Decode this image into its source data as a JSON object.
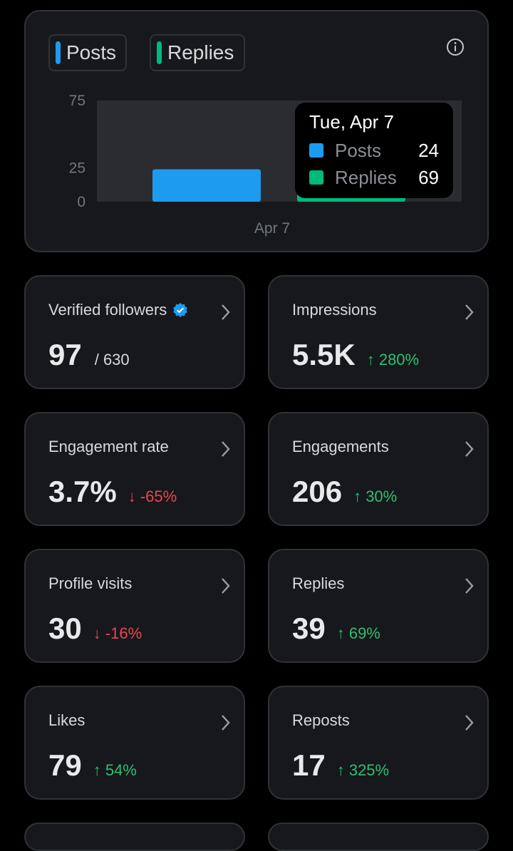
{
  "legend": {
    "posts_label": "Posts",
    "replies_label": "Replies"
  },
  "colors": {
    "posts": "#1d9bf0",
    "replies": "#00ba7c",
    "up": "#2fbf71",
    "down": "#ea4552"
  },
  "chart_data": {
    "type": "bar",
    "categories": [
      "Apr 7"
    ],
    "series": [
      {
        "name": "Posts",
        "values": [
          24
        ]
      },
      {
        "name": "Replies",
        "values": [
          69
        ]
      }
    ],
    "y_ticks": [
      "75",
      "25",
      "0"
    ],
    "ylim": [
      0,
      75
    ],
    "grid": false,
    "legend_position": "top-left"
  },
  "tooltip": {
    "title": "Tue, Apr 7",
    "posts_label": "Posts",
    "posts_value": "24",
    "replies_label": "Replies",
    "replies_value": "69"
  },
  "stats": {
    "verified_followers": {
      "label": "Verified followers",
      "value": "97",
      "sub": "/ 630"
    },
    "impressions": {
      "label": "Impressions",
      "value": "5.5K",
      "change": "↑ 280%"
    },
    "engagement_rate": {
      "label": "Engagement rate",
      "value": "3.7%",
      "change": "↓ -65%"
    },
    "engagements": {
      "label": "Engagements",
      "value": "206",
      "change": "↑ 30%"
    },
    "profile_visits": {
      "label": "Profile visits",
      "value": "30",
      "change": "↓ -16%"
    },
    "replies": {
      "label": "Replies",
      "value": "39",
      "change": "↑ 69%"
    },
    "likes": {
      "label": "Likes",
      "value": "79",
      "change": "↑ 54%"
    },
    "reposts": {
      "label": "Reposts",
      "value": "17",
      "change": "↑ 325%"
    }
  }
}
